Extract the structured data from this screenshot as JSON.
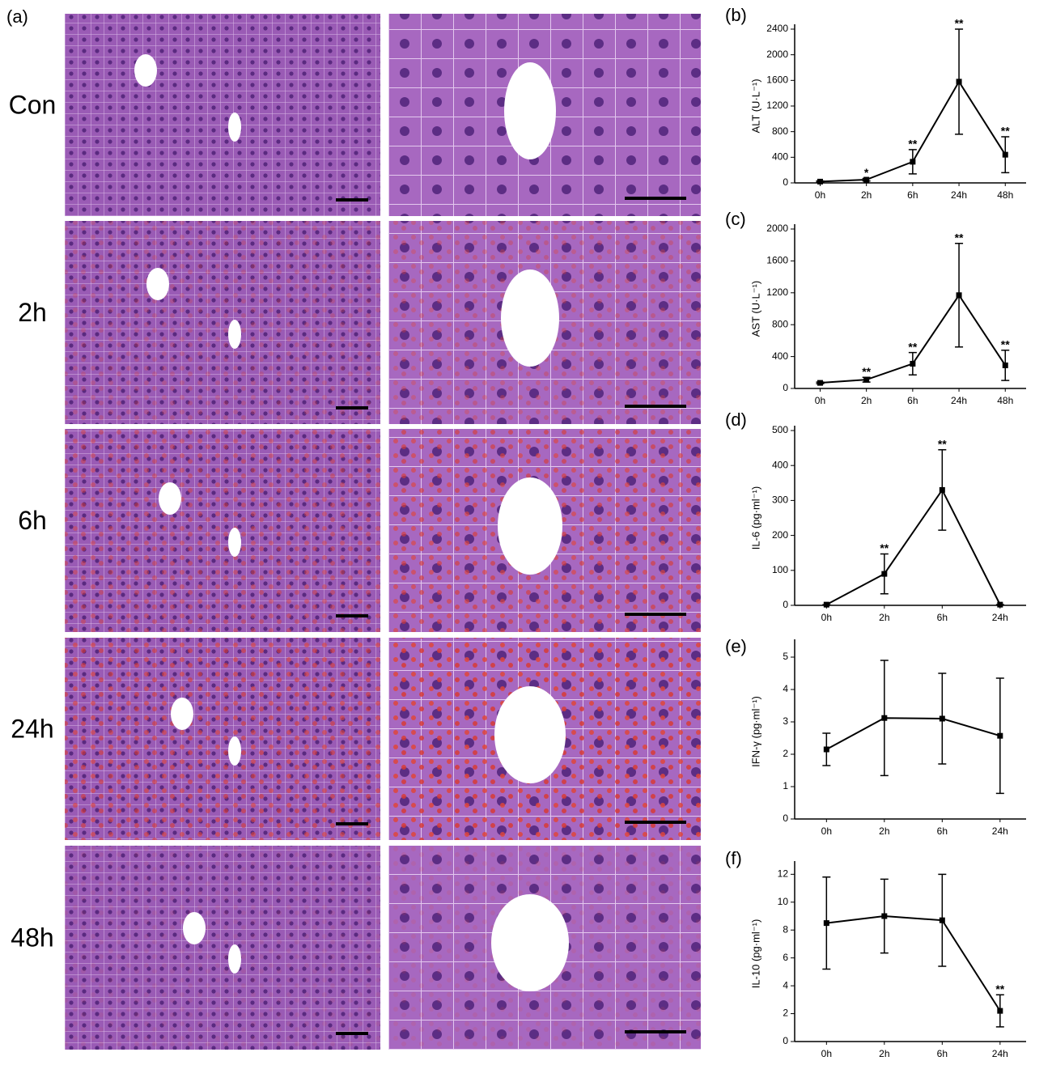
{
  "histology": {
    "label": "(a)",
    "rows": [
      "Con",
      "2h",
      "6h",
      "24h",
      "48h"
    ]
  },
  "chart_data": [
    {
      "type": "line",
      "label": "(b)",
      "ylabel": "ALT (U·L⁻¹)",
      "categories": [
        "0h",
        "2h",
        "6h",
        "24h",
        "48h"
      ],
      "values": [
        20,
        50,
        330,
        1580,
        440
      ],
      "errors": [
        10,
        20,
        190,
        820,
        280
      ],
      "annotations": [
        null,
        "*",
        "**",
        "**",
        "**"
      ],
      "color": "#000000",
      "ylim": [
        0,
        2400
      ],
      "yticks": [
        0,
        400,
        800,
        1200,
        1600,
        2000,
        2400
      ]
    },
    {
      "type": "line",
      "label": "(c)",
      "ylabel": "AST (U·L⁻¹)",
      "categories": [
        "0h",
        "2h",
        "6h",
        "24h",
        "48h"
      ],
      "values": [
        70,
        110,
        310,
        1170,
        290
      ],
      "errors": [
        10,
        30,
        140,
        650,
        190
      ],
      "annotations": [
        null,
        "**",
        "**",
        "**",
        "**"
      ],
      "color": "#000000",
      "ylim": [
        0,
        2000
      ],
      "yticks": [
        0,
        400,
        800,
        1200,
        1600,
        2000
      ]
    },
    {
      "type": "line",
      "label": "(d)",
      "ylabel": "IL-6 (pg·ml⁻¹)",
      "categories": [
        "0h",
        "2h",
        "6h",
        "24h"
      ],
      "values": [
        2,
        90,
        330,
        2
      ],
      "errors": [
        0,
        57,
        115,
        0
      ],
      "annotations": [
        null,
        "**",
        "**",
        null
      ],
      "color": "#000000",
      "ylim": [
        0,
        500
      ],
      "yticks": [
        0,
        100,
        200,
        300,
        400,
        500
      ]
    },
    {
      "type": "line",
      "label": "(e)",
      "ylabel": "IFN-γ (pg·ml⁻¹)",
      "categories": [
        "0h",
        "2h",
        "6h",
        "24h"
      ],
      "values": [
        2.15,
        3.12,
        3.1,
        2.57
      ],
      "errors": [
        0.5,
        1.78,
        1.4,
        1.78
      ],
      "color": "#000000",
      "ylim": [
        0,
        5.4
      ],
      "yticks": [
        0,
        1,
        2,
        3,
        4,
        5
      ]
    },
    {
      "type": "line",
      "label": "(f)",
      "ylabel": "IL-10 (pg·ml⁻¹)",
      "categories": [
        "0h",
        "2h",
        "6h",
        "24h"
      ],
      "values": [
        8.5,
        9.0,
        8.7,
        2.2
      ],
      "errors": [
        3.3,
        2.65,
        3.3,
        1.15
      ],
      "annotations": [
        null,
        null,
        null,
        "**"
      ],
      "color": "#000000",
      "ylim": [
        0,
        12.6
      ],
      "yticks": [
        0,
        2,
        4,
        6,
        8,
        10,
        12
      ]
    }
  ]
}
